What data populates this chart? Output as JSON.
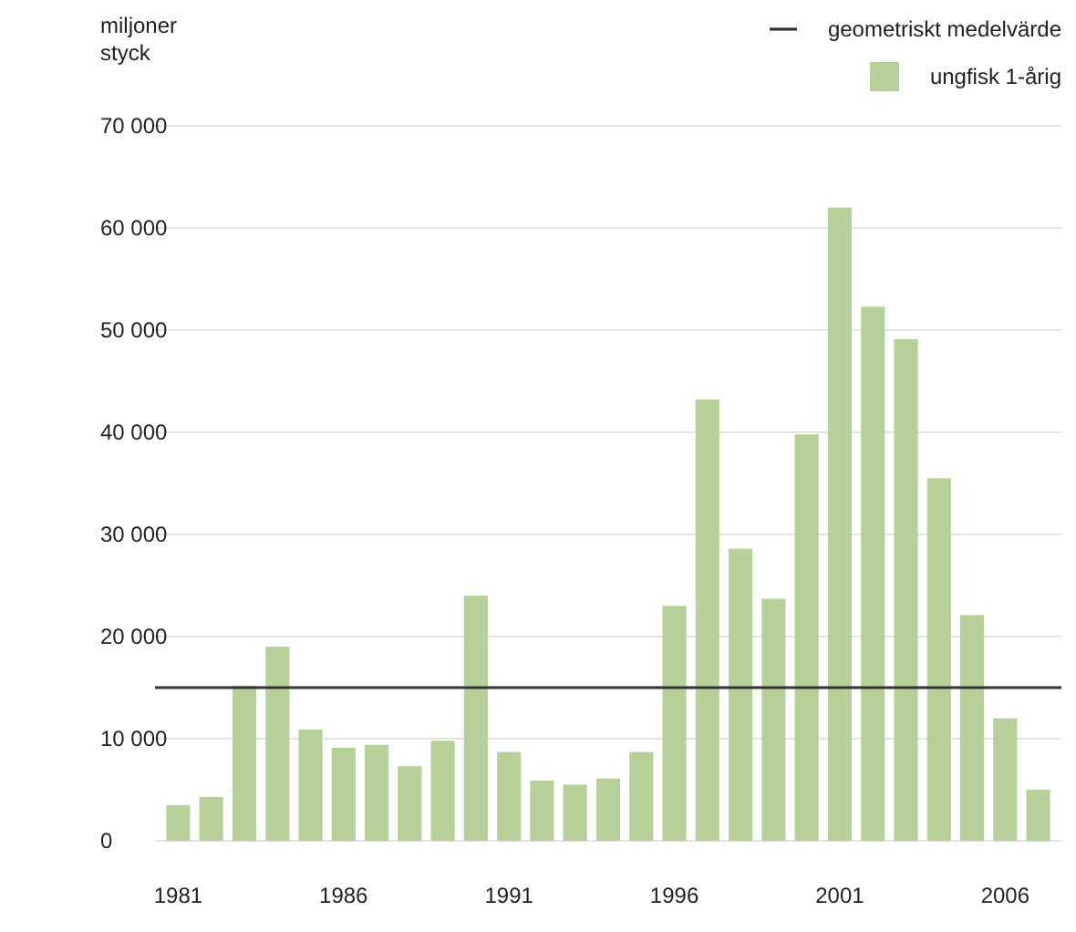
{
  "chart_data": {
    "type": "bar",
    "ylabel": "miljoner styck",
    "x": [
      1981,
      1982,
      1983,
      1984,
      1985,
      1986,
      1987,
      1988,
      1989,
      1990,
      1991,
      1992,
      1993,
      1994,
      1995,
      1996,
      1997,
      1998,
      1999,
      2000,
      2001,
      2002,
      2003,
      2004,
      2005,
      2006,
      2007
    ],
    "series": [
      {
        "name": "ungfisk 1-årig",
        "color": "#b7d09a",
        "values": [
          3500,
          4300,
          15200,
          19000,
          10900,
          9100,
          9400,
          7300,
          9800,
          24000,
          8700,
          5900,
          5500,
          6100,
          8700,
          23000,
          43200,
          28600,
          23700,
          39800,
          62000,
          52300,
          49100,
          35500,
          22100,
          12000,
          5000
        ]
      }
    ],
    "xlim": [
      1980.3,
      2007.7
    ],
    "xticks": [
      1981,
      1986,
      1991,
      1996,
      2001,
      2006
    ],
    "ylim": [
      0,
      70000
    ],
    "yticks": [
      0,
      {
        "value": 10000,
        "label": "10 000"
      },
      {
        "value": 20000,
        "label": "20 000"
      },
      {
        "value": 30000,
        "label": "30 000"
      },
      {
        "value": 40000,
        "label": "40 000"
      },
      {
        "value": 50000,
        "label": "50 000"
      },
      {
        "value": 60000,
        "label": "60 000"
      },
      {
        "value": 70000,
        "label": "70 000"
      }
    ],
    "ref_lines": [
      {
        "axis": "y",
        "value": 15000,
        "label": "geometriskt medelvärde",
        "color": "#333333"
      }
    ],
    "grid": "y",
    "legend": "top right"
  }
}
